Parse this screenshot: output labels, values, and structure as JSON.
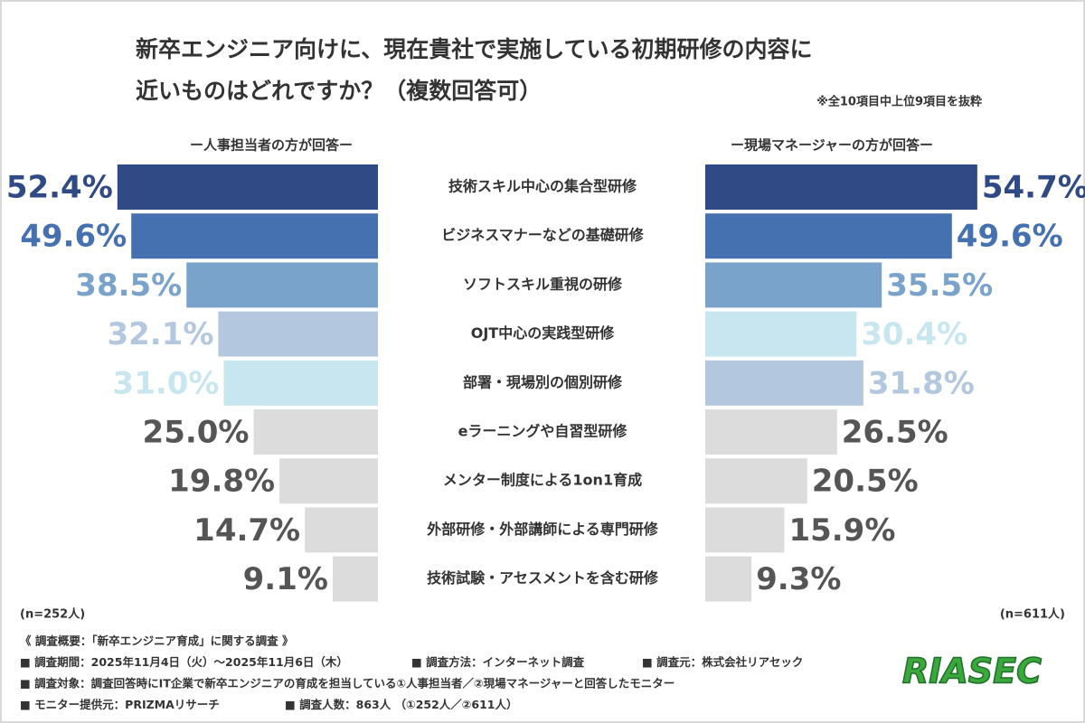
{
  "chart_data": {
    "type": "butterfly",
    "title": [
      "新卒エンジニア向けに、現在貴社で実施している初期研修の内容に",
      "近いものはどれですか？（複数回答可）"
    ],
    "note": "※全10項目中上位9項目を抜粋",
    "categories": [
      "技術スキル中心の集合型研修",
      "ビジネスマナーなどの基礎研修",
      "ソフトスキル重視の研修",
      "OJT中心の実践型研修",
      "部署・現場別の個別研修",
      "eラーニングや自習型研修",
      "メンター制度による1on1育成",
      "外部研修・外部講師による専門研修",
      "技術試験・アセスメントを含む研修"
    ],
    "series": [
      {
        "name": "ー人事担当者の方が回答ー",
        "side": "left",
        "sample": "(n=252人)",
        "values": [
          52.4,
          49.6,
          38.5,
          32.1,
          31.0,
          25.0,
          19.8,
          14.7,
          9.1
        ],
        "value_labels": [
          "52.4%",
          "49.6%",
          "38.5%",
          "32.1%",
          "31.0%",
          "25.0%",
          "19.8%",
          "14.7%",
          "9.1%"
        ],
        "colors": [
          "#2f4a84",
          "#4571b0",
          "#7aa3cb",
          "#b3c8de",
          "#c7e6f0",
          "#dcdcdc",
          "#dcdcdc",
          "#dcdcdc",
          "#dcdcdc"
        ]
      },
      {
        "name": "ー現場マネージャーの方が回答ー",
        "side": "right",
        "sample": "(n=611人)",
        "values": [
          54.7,
          49.6,
          35.5,
          30.4,
          31.8,
          26.5,
          20.5,
          15.9,
          9.3
        ],
        "value_labels": [
          "54.7%",
          "49.6%",
          "35.5%",
          "30.4%",
          "31.8%",
          "26.5%",
          "20.5%",
          "15.9%",
          "9.3%"
        ],
        "colors": [
          "#2f4a84",
          "#4571b0",
          "#7aa3cb",
          "#c7e6f0",
          "#b3c8de",
          "#dcdcdc",
          "#dcdcdc",
          "#dcdcdc",
          "#dcdcdc"
        ]
      }
    ],
    "footer": [
      [
        "《 調査概要：「新卒エンジニア育成」に関する調査 》"
      ],
      [
        "■ 調査期間：2025年11月4日（火）～2025年11月6日（木）",
        "■ 調査方法：インターネット調査",
        "■ 調査元：株式会社リアセック"
      ],
      [
        "■ 調査対象：調査回答時にIT企業で新卒エンジニアの育成を担当している①人事担当者／②現場マネージャーと回答したモニター"
      ],
      [
        "■ モニター提供元：PRIZMAリサーチ",
        "■ 調査人数：863人 （①252人／②611人）"
      ]
    ],
    "logo": "RIASEC"
  }
}
